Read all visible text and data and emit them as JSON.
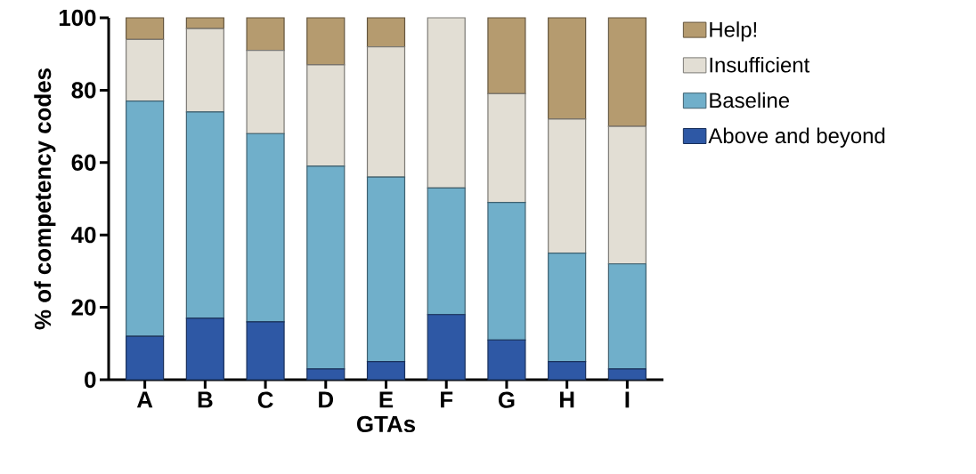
{
  "chart_data": {
    "type": "bar",
    "stacked": true,
    "xlabel": "GTAs",
    "ylabel": "% of competency codes",
    "categories": [
      "A",
      "B",
      "C",
      "D",
      "E",
      "F",
      "G",
      "H",
      "I"
    ],
    "ylim": [
      0,
      100
    ],
    "yticks": [
      0,
      20,
      40,
      60,
      80,
      100
    ],
    "grid": false,
    "legend": "right",
    "series": [
      {
        "name": "Above and beyond",
        "color": "#2e58a5",
        "values": [
          12,
          17,
          16,
          3,
          5,
          18,
          11,
          5,
          3
        ]
      },
      {
        "name": "Baseline",
        "color": "#70afca",
        "values": [
          65,
          57,
          52,
          56,
          51,
          35,
          38,
          30,
          29
        ]
      },
      {
        "name": "Insufficient",
        "color": "#e2ded4",
        "values": [
          17,
          23,
          23,
          28,
          36,
          47,
          30,
          37,
          38
        ]
      },
      {
        "name": "Help!",
        "color": "#b59b6f",
        "values": [
          6,
          3,
          9,
          13,
          8,
          0,
          21,
          28,
          30
        ]
      }
    ]
  }
}
